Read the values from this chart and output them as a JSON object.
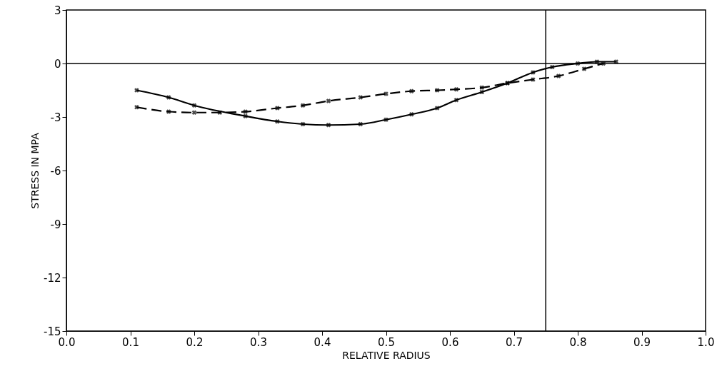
{
  "chart_data": {
    "type": "line",
    "xlabel": "RELATIVE RADIUS",
    "ylabel": "STRESS IN MPA",
    "xlim": [
      0,
      1
    ],
    "ylim": [
      -15,
      3
    ],
    "xticks": [
      {
        "value": 0,
        "label": "0.0"
      },
      0.1,
      0.2,
      0.3,
      0.4,
      0.5,
      0.6,
      0.7,
      0.8,
      0.9,
      {
        "value": 1,
        "label": "1.0"
      }
    ],
    "yticks": [
      {
        "value": -15,
        "label": "-15"
      },
      {
        "value": -12,
        "label": "-12"
      },
      {
        "value": -9,
        "label": "-9"
      },
      {
        "value": -6,
        "label": "-6"
      },
      {
        "value": -3,
        "label": "-3"
      },
      0,
      3
    ],
    "grid": false,
    "marker": "cross",
    "series": [
      {
        "color": "#000000",
        "line_style": "solid",
        "x": [
          0.11,
          0.16,
          0.2,
          0.28,
          0.33,
          0.37,
          0.41,
          0.46,
          0.5,
          0.54,
          0.58,
          0.61,
          0.65,
          0.69,
          0.73,
          0.76,
          0.8,
          0.83,
          0.86
        ],
        "values": [
          -1.5,
          -1.9,
          -2.35,
          -2.95,
          -3.25,
          -3.4,
          -3.45,
          -3.4,
          -3.15,
          -2.85,
          -2.5,
          -2.05,
          -1.6,
          -1.1,
          -0.5,
          -0.2,
          0.0,
          0.1,
          0.1
        ]
      },
      {
        "color": "#000000",
        "line_style": "dashed",
        "x": [
          0.11,
          0.16,
          0.2,
          0.24,
          0.28,
          0.33,
          0.37,
          0.41,
          0.46,
          0.5,
          0.54,
          0.58,
          0.61,
          0.65,
          0.69,
          0.73,
          0.77,
          0.81,
          0.84
        ],
        "values": [
          -2.45,
          -2.7,
          -2.75,
          -2.75,
          -2.7,
          -2.5,
          -2.35,
          -2.1,
          -1.9,
          -1.7,
          -1.55,
          -1.5,
          -1.45,
          -1.35,
          -1.1,
          -0.9,
          -0.7,
          -0.3,
          0.0
        ]
      }
    ],
    "ref_lines": [
      {
        "axis": "y",
        "value": 0,
        "color": "#000000"
      },
      {
        "axis": "x",
        "value": 0.75,
        "color": "#000000"
      }
    ]
  }
}
